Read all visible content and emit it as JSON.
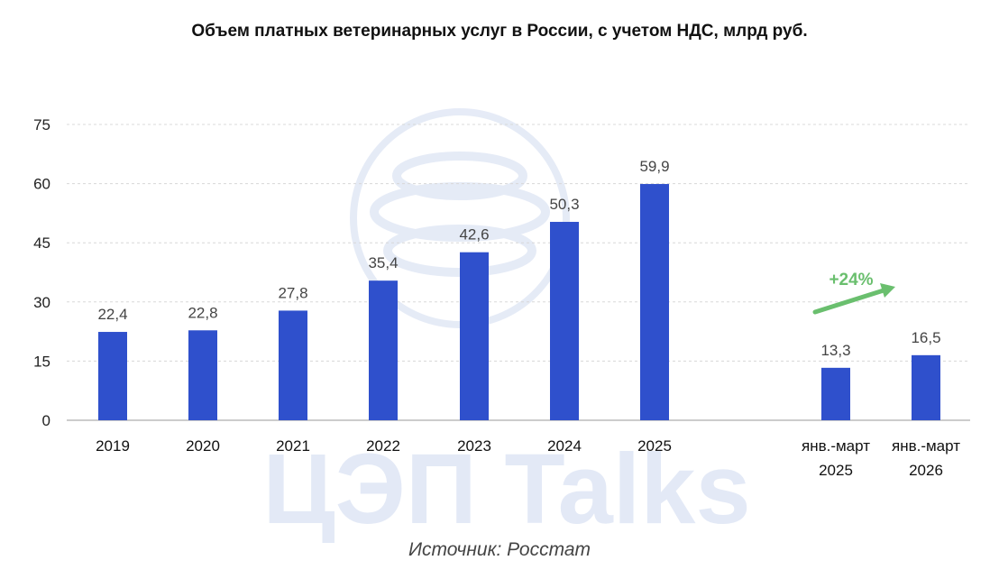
{
  "chart_data": {
    "type": "bar",
    "title": "Объем платных ветеринарных услуг в России, с учетом НДС, млрд руб.",
    "categories": [
      [
        "2019"
      ],
      [
        "2020"
      ],
      [
        "2021"
      ],
      [
        "2022"
      ],
      [
        "2023"
      ],
      [
        "2024"
      ],
      [
        "2025"
      ],
      [
        "янв.-март",
        "2025"
      ],
      [
        "янв.-март",
        "2026"
      ]
    ],
    "values": [
      22.4,
      22.8,
      27.8,
      35.4,
      42.6,
      50.3,
      59.9,
      13.3,
      16.5
    ],
    "value_labels": [
      "22,4",
      "22,8",
      "27,8",
      "35,4",
      "42,6",
      "50,3",
      "59,9",
      "13,3",
      "16,5"
    ],
    "yticks": [
      0,
      15,
      30,
      45,
      60,
      75
    ],
    "ylim": [
      0,
      75
    ],
    "grid": true,
    "bar_color": "#2f50cc",
    "annotation": {
      "text": "+24%",
      "color": "#6abf6e"
    }
  },
  "source": "Источник: Росстат",
  "watermark": "ЦЭП Talks",
  "watermark_color": "#e3e9f6"
}
